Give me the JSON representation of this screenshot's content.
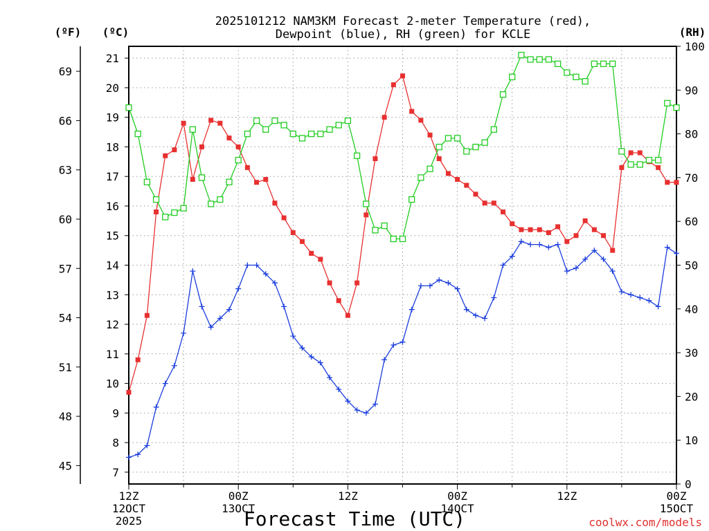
{
  "chart_data": {
    "type": "line",
    "title_line1": "2025101212 NAM3KM Forecast 2-meter Temperature (red),",
    "title_line2": "Dewpoint (blue), RH (green) for KCLE",
    "xlabel": "Forecast Time (UTC)",
    "credit": "coolwx.com/models",
    "unit_f": "(ºF)",
    "unit_c": "(ºC)",
    "unit_rh": "(RH)",
    "y_c_range": [
      6.6,
      21.4
    ],
    "y_rh_range": [
      0,
      100
    ],
    "x_range_hours": [
      0,
      60
    ],
    "grid": true,
    "c_ticks": [
      "7",
      "8",
      "9",
      "10",
      "11",
      "12",
      "13",
      "14",
      "15",
      "16",
      "17",
      "18",
      "19",
      "20",
      "21"
    ],
    "f_ticks": [
      "45",
      "48",
      "51",
      "54",
      "57",
      "60",
      "63",
      "66",
      "69"
    ],
    "rh_ticks": [
      "0",
      "10",
      "20",
      "30",
      "40",
      "50",
      "60",
      "70",
      "80",
      "90",
      "100"
    ],
    "x_time_labels": [
      {
        "hour": 0,
        "line1": "12Z",
        "line2": "12OCT",
        "line3": "2025"
      },
      {
        "hour": 12,
        "line1": "00Z",
        "line2": "13OCT",
        "line3": ""
      },
      {
        "hour": 24,
        "line1": "12Z",
        "line2": "",
        "line3": ""
      },
      {
        "hour": 36,
        "line1": "00Z",
        "line2": "14OCT",
        "line3": ""
      },
      {
        "hour": 48,
        "line1": "12Z",
        "line2": "",
        "line3": ""
      },
      {
        "hour": 60,
        "line1": "00Z",
        "line2": "15OCT",
        "line3": ""
      }
    ],
    "series": [
      {
        "name": "2-meter Temperature",
        "unit": "C",
        "color": "#e83030",
        "marker": "filled-square",
        "values": [
          9.7,
          10.8,
          12.3,
          15.8,
          17.7,
          17.9,
          18.8,
          16.9,
          18.0,
          18.9,
          18.8,
          18.3,
          18.0,
          17.3,
          16.8,
          16.9,
          16.1,
          15.6,
          15.1,
          14.8,
          14.4,
          14.2,
          13.4,
          12.8,
          12.3,
          13.4,
          15.7,
          17.6,
          19.0,
          20.1,
          20.4,
          19.2,
          18.9,
          18.4,
          17.6,
          17.1,
          16.9,
          16.7,
          16.4,
          16.1,
          16.1,
          15.8,
          15.4,
          15.2,
          15.2,
          15.2,
          15.1,
          15.3,
          14.8,
          15.0,
          15.5,
          15.2,
          15.0,
          14.5,
          17.3,
          17.8,
          17.8,
          17.5,
          17.3,
          16.8,
          16.8
        ]
      },
      {
        "name": "Dewpoint",
        "unit": "C",
        "color": "#1a3ddd",
        "marker": "plus",
        "values": [
          7.5,
          7.6,
          7.9,
          9.2,
          10.0,
          10.6,
          11.7,
          13.8,
          12.6,
          11.9,
          12.2,
          12.5,
          13.2,
          14.0,
          14.0,
          13.7,
          13.4,
          12.6,
          11.6,
          11.2,
          10.9,
          10.7,
          10.2,
          9.8,
          9.4,
          9.1,
          9.0,
          9.3,
          10.8,
          11.3,
          11.4,
          12.5,
          13.3,
          13.3,
          13.5,
          13.4,
          13.2,
          12.5,
          12.3,
          12.2,
          12.9,
          14.0,
          14.3,
          14.8,
          14.7,
          14.7,
          14.6,
          14.7,
          13.8,
          13.9,
          14.2,
          14.5,
          14.2,
          13.8,
          13.1,
          13.0,
          12.9,
          12.8,
          12.6,
          14.6,
          14.4
        ]
      },
      {
        "name": "RH",
        "unit": "%",
        "color": "#22cc22",
        "marker": "open-square",
        "values": [
          86,
          80,
          69,
          65,
          61,
          62,
          63,
          81,
          70,
          64,
          65,
          69,
          74,
          80,
          83,
          81,
          83,
          82,
          80,
          79,
          80,
          80,
          81,
          82,
          83,
          75,
          64,
          58,
          59,
          56,
          56,
          65,
          70,
          72,
          77,
          79,
          79,
          76,
          77,
          78,
          81,
          89,
          93,
          98,
          97,
          97,
          97,
          96,
          94,
          93,
          92,
          96,
          96,
          96,
          76,
          73,
          73,
          74,
          74,
          87,
          86
        ]
      }
    ]
  }
}
